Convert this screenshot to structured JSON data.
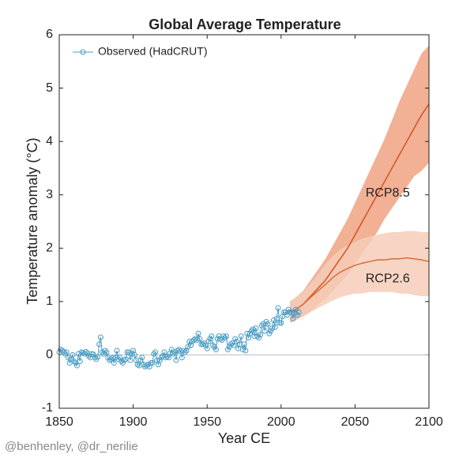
{
  "chart_data": {
    "type": "line",
    "title": "Global Average Temperature",
    "xlabel": "Year CE",
    "ylabel": "Temperature anomaly (°C)",
    "credit": "@benhenley, @dr_nerilie",
    "xlim": [
      1850,
      2100
    ],
    "xticks": [
      1850,
      1900,
      1950,
      2000,
      2050,
      2100
    ],
    "ylim": [
      -1,
      6
    ],
    "yticks": [
      -1,
      0,
      1,
      2,
      3,
      4,
      5,
      6
    ],
    "hline": 0,
    "legend": "upper left",
    "series": [
      {
        "name": "Observed (HadCRUT)",
        "color": "#4a9cc4",
        "marker": "o",
        "x": [
          1850,
          1851,
          1852,
          1853,
          1854,
          1855,
          1856,
          1857,
          1858,
          1859,
          1860,
          1861,
          1862,
          1863,
          1864,
          1865,
          1866,
          1867,
          1868,
          1869,
          1870,
          1871,
          1872,
          1873,
          1874,
          1875,
          1876,
          1877,
          1878,
          1879,
          1880,
          1881,
          1882,
          1883,
          1884,
          1885,
          1886,
          1887,
          1888,
          1889,
          1890,
          1891,
          1892,
          1893,
          1894,
          1895,
          1896,
          1897,
          1898,
          1899,
          1900,
          1901,
          1902,
          1903,
          1904,
          1905,
          1906,
          1907,
          1908,
          1909,
          1910,
          1911,
          1912,
          1913,
          1914,
          1915,
          1916,
          1917,
          1918,
          1919,
          1920,
          1921,
          1922,
          1923,
          1924,
          1925,
          1926,
          1927,
          1928,
          1929,
          1930,
          1931,
          1932,
          1933,
          1934,
          1935,
          1936,
          1937,
          1938,
          1939,
          1940,
          1941,
          1942,
          1943,
          1944,
          1945,
          1946,
          1947,
          1948,
          1949,
          1950,
          1951,
          1952,
          1953,
          1954,
          1955,
          1956,
          1957,
          1958,
          1959,
          1960,
          1961,
          1962,
          1963,
          1964,
          1965,
          1966,
          1967,
          1968,
          1969,
          1970,
          1971,
          1972,
          1973,
          1974,
          1975,
          1976,
          1977,
          1978,
          1979,
          1980,
          1981,
          1982,
          1983,
          1984,
          1985,
          1986,
          1987,
          1988,
          1989,
          1990,
          1991,
          1992,
          1993,
          1994,
          1995,
          1996,
          1997,
          1998,
          1999,
          2000,
          2001,
          2002,
          2003,
          2004,
          2005,
          2006,
          2007,
          2008,
          2009,
          2010,
          2011,
          2012
        ],
        "values": [
          0.05,
          0.1,
          0.08,
          0.06,
          0.02,
          0.05,
          -0.05,
          -0.15,
          -0.08,
          0.0,
          -0.12,
          -0.15,
          -0.2,
          0.02,
          -0.12,
          0.05,
          0.04,
          0.02,
          0.06,
          0.03,
          -0.02,
          -0.05,
          0.02,
          0.01,
          -0.05,
          -0.08,
          -0.04,
          0.2,
          0.33,
          0.05,
          0.02,
          0.08,
          0.05,
          -0.05,
          -0.1,
          -0.08,
          -0.06,
          -0.15,
          -0.05,
          0.08,
          -0.08,
          -0.05,
          -0.12,
          -0.15,
          -0.1,
          -0.08,
          0.05,
          0.05,
          -0.1,
          0.02,
          0.08,
          0.0,
          -0.1,
          -0.18,
          -0.2,
          -0.1,
          -0.05,
          -0.18,
          -0.22,
          -0.2,
          -0.18,
          -0.22,
          -0.15,
          -0.15,
          0.02,
          0.05,
          -0.1,
          -0.18,
          -0.1,
          -0.05,
          -0.02,
          0.05,
          -0.05,
          -0.03,
          -0.05,
          0.03,
          0.1,
          0.02,
          0.05,
          -0.1,
          0.08,
          0.1,
          0.07,
          -0.05,
          0.08,
          0.05,
          0.08,
          0.15,
          0.25,
          0.18,
          0.25,
          0.28,
          0.3,
          0.28,
          0.4,
          0.3,
          0.2,
          0.2,
          0.22,
          0.18,
          0.12,
          0.25,
          0.3,
          0.35,
          0.18,
          0.15,
          0.1,
          0.3,
          0.35,
          0.3,
          0.28,
          0.35,
          0.32,
          0.35,
          0.1,
          0.15,
          0.2,
          0.22,
          0.18,
          0.3,
          0.25,
          0.12,
          0.2,
          0.35,
          0.1,
          0.2,
          0.08,
          0.4,
          0.32,
          0.4,
          0.45,
          0.48,
          0.35,
          0.5,
          0.35,
          0.32,
          0.38,
          0.55,
          0.58,
          0.45,
          0.62,
          0.58,
          0.4,
          0.45,
          0.5,
          0.65,
          0.52,
          0.68,
          0.88,
          0.6,
          0.6,
          0.72,
          0.8,
          0.8,
          0.75,
          0.85,
          0.8,
          0.8,
          0.68,
          0.78,
          0.85,
          0.75,
          0.8
        ]
      }
    ],
    "projections": [
      {
        "name": "RCP8.5",
        "color": "#d4521e",
        "band_color": "#f0a283",
        "x": [
          2006,
          2010,
          2015,
          2020,
          2025,
          2030,
          2035,
          2040,
          2045,
          2050,
          2055,
          2060,
          2065,
          2070,
          2075,
          2080,
          2085,
          2090,
          2095,
          2100
        ],
        "values": [
          0.8,
          0.85,
          0.95,
          1.1,
          1.25,
          1.4,
          1.6,
          1.8,
          2.0,
          2.25,
          2.5,
          2.75,
          3.0,
          3.25,
          3.5,
          3.75,
          4.0,
          4.25,
          4.5,
          4.7
        ],
        "lower": [
          0.6,
          0.65,
          0.72,
          0.82,
          0.95,
          1.05,
          1.2,
          1.35,
          1.5,
          1.7,
          1.9,
          2.1,
          2.3,
          2.55,
          2.75,
          2.95,
          3.15,
          3.35,
          3.45,
          3.6
        ],
        "upper": [
          1.0,
          1.08,
          1.2,
          1.4,
          1.6,
          1.8,
          2.05,
          2.3,
          2.55,
          2.85,
          3.15,
          3.45,
          3.75,
          4.05,
          4.4,
          4.75,
          5.05,
          5.35,
          5.65,
          5.8
        ]
      },
      {
        "name": "RCP2.6",
        "color": "#d2703a",
        "band_color": "#f6cdb9",
        "x": [
          2006,
          2010,
          2015,
          2020,
          2025,
          2030,
          2035,
          2040,
          2045,
          2050,
          2055,
          2060,
          2065,
          2070,
          2075,
          2080,
          2085,
          2090,
          2095,
          2100
        ],
        "values": [
          0.8,
          0.85,
          0.95,
          1.08,
          1.2,
          1.32,
          1.45,
          1.55,
          1.62,
          1.68,
          1.72,
          1.75,
          1.78,
          1.78,
          1.8,
          1.8,
          1.82,
          1.8,
          1.78,
          1.75
        ],
        "lower": [
          0.6,
          0.65,
          0.72,
          0.8,
          0.88,
          0.95,
          1.02,
          1.08,
          1.12,
          1.15,
          1.15,
          1.18,
          1.18,
          1.18,
          1.18,
          1.15,
          1.15,
          1.12,
          1.1,
          1.1
        ],
        "upper": [
          1.0,
          1.08,
          1.18,
          1.35,
          1.52,
          1.7,
          1.85,
          1.98,
          2.05,
          2.12,
          2.18,
          2.22,
          2.25,
          2.28,
          2.3,
          2.3,
          2.32,
          2.32,
          2.3,
          2.3
        ]
      }
    ]
  }
}
